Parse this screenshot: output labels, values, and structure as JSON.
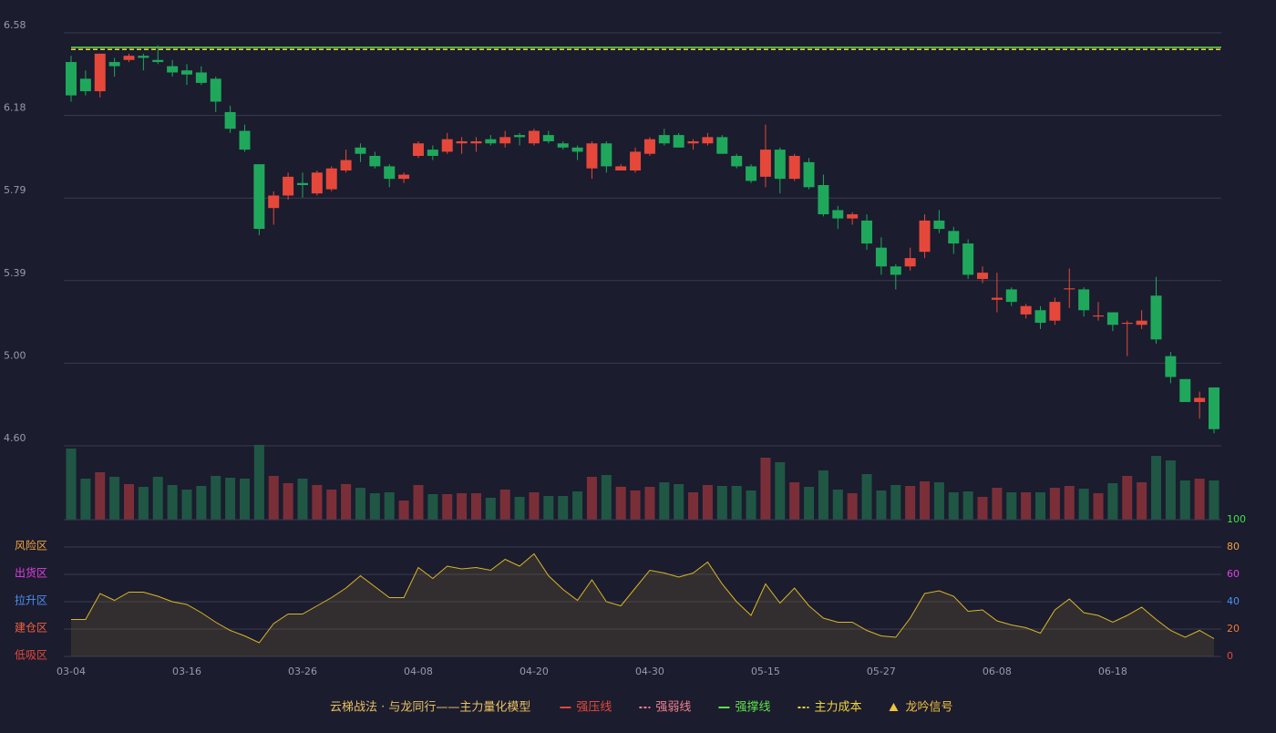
{
  "chart_data": {
    "type": "candlestick",
    "categories": [
      "03-04",
      null,
      null,
      null,
      null,
      null,
      null,
      null,
      "03-16",
      null,
      null,
      null,
      null,
      null,
      null,
      null,
      "03-26",
      null,
      null,
      null,
      null,
      null,
      null,
      null,
      "04-08",
      null,
      null,
      null,
      null,
      null,
      null,
      null,
      "04-20",
      null,
      null,
      null,
      null,
      null,
      null,
      null,
      "04-30",
      null,
      null,
      null,
      null,
      null,
      null,
      null,
      "05-15",
      null,
      null,
      null,
      null,
      null,
      null,
      null,
      "05-27",
      null,
      null,
      null,
      null,
      null,
      null,
      null,
      "06-08",
      null,
      null,
      null,
      null,
      null,
      null,
      null,
      "06-18",
      null,
      null,
      null,
      null,
      null,
      null,
      null
    ],
    "open": [
      6.44,
      6.36,
      6.3,
      6.44,
      6.45,
      6.47,
      6.45,
      6.42,
      6.4,
      6.39,
      6.36,
      6.2,
      6.11,
      5.95,
      5.74,
      5.8,
      5.86,
      5.81,
      5.83,
      5.92,
      6.03,
      5.99,
      5.94,
      5.88,
      5.99,
      6.02,
      6.01,
      6.05,
      6.05,
      6.07,
      6.05,
      6.09,
      6.05,
      6.09,
      6.05,
      6.03,
      5.93,
      6.05,
      5.92,
      5.92,
      6.0,
      6.09,
      6.09,
      6.05,
      6.05,
      6.08,
      5.99,
      5.94,
      5.89,
      6.02,
      5.88,
      5.96,
      5.85,
      5.73,
      5.69,
      5.68,
      5.55,
      5.46,
      5.46,
      5.53,
      5.68,
      5.63,
      5.57,
      5.4,
      5.3,
      5.35,
      5.23,
      5.25,
      5.2,
      5.35,
      5.35,
      5.22,
      5.24,
      5.185,
      5.18,
      5.32,
      5.03,
      4.92,
      4.81,
      4.88
    ],
    "high": [
      6.47,
      6.4,
      6.48,
      6.46,
      6.48,
      6.48,
      6.52,
      6.45,
      6.43,
      6.42,
      6.37,
      6.23,
      6.14,
      5.95,
      5.82,
      5.91,
      5.91,
      5.92,
      5.94,
      6.02,
      6.05,
      6.01,
      5.95,
      5.91,
      6.06,
      6.04,
      6.1,
      6.08,
      6.08,
      6.09,
      6.11,
      6.1,
      6.12,
      6.11,
      6.06,
      6.04,
      6.06,
      6.06,
      5.95,
      6.03,
      6.08,
      6.12,
      6.1,
      6.07,
      6.1,
      6.09,
      6.0,
      5.95,
      6.14,
      6.03,
      6.0,
      5.98,
      5.9,
      5.75,
      5.72,
      5.71,
      5.6,
      5.47,
      5.55,
      5.71,
      5.73,
      5.65,
      5.59,
      5.46,
      5.43,
      5.36,
      5.28,
      5.27,
      5.31,
      5.45,
      5.36,
      5.29,
      5.24,
      5.2,
      5.25,
      5.41,
      5.05,
      4.92,
      4.86,
      4.88
    ],
    "low": [
      6.25,
      6.28,
      6.27,
      6.37,
      6.44,
      6.4,
      6.43,
      6.37,
      6.33,
      6.33,
      6.2,
      6.1,
      6.01,
      5.61,
      5.66,
      5.78,
      5.79,
      5.8,
      5.82,
      5.91,
      5.96,
      5.93,
      5.84,
      5.86,
      5.98,
      5.97,
      6.0,
      6.0,
      6.01,
      6.04,
      6.03,
      6.04,
      6.04,
      6.05,
      6.02,
      5.97,
      5.88,
      5.91,
      5.92,
      5.91,
      5.99,
      6.04,
      6.03,
      6.02,
      6.04,
      6.0,
      5.93,
      5.86,
      5.84,
      5.81,
      5.87,
      5.83,
      5.7,
      5.64,
      5.66,
      5.54,
      5.42,
      5.35,
      5.44,
      5.5,
      5.62,
      5.52,
      5.4,
      5.38,
      5.24,
      5.27,
      5.21,
      5.16,
      5.18,
      5.26,
      5.22,
      5.2,
      5.15,
      5.03,
      5.16,
      5.09,
      4.9,
      4.81,
      4.73,
      4.66
    ],
    "close": [
      6.28,
      6.3,
      6.48,
      6.42,
      6.47,
      6.46,
      6.44,
      6.39,
      6.38,
      6.34,
      6.25,
      6.12,
      6.02,
      5.64,
      5.8,
      5.89,
      5.85,
      5.91,
      5.93,
      5.97,
      6.0,
      5.94,
      5.88,
      5.9,
      6.05,
      5.99,
      6.07,
      6.06,
      6.06,
      6.05,
      6.08,
      6.08,
      6.11,
      6.06,
      6.03,
      6.01,
      6.05,
      5.94,
      5.94,
      6.01,
      6.07,
      6.05,
      6.03,
      6.06,
      6.08,
      6.0,
      5.94,
      5.87,
      6.02,
      5.88,
      5.99,
      5.84,
      5.71,
      5.69,
      5.71,
      5.57,
      5.46,
      5.42,
      5.5,
      5.68,
      5.64,
      5.57,
      5.42,
      5.43,
      5.31,
      5.29,
      5.27,
      5.19,
      5.29,
      5.355,
      5.25,
      5.225,
      5.18,
      5.19,
      5.2,
      5.11,
      4.93,
      4.81,
      4.83,
      4.68
    ],
    "up_color": "#e5483a",
    "down_color": "#1fa85c",
    "ylim": [
      4.6,
      6.58
    ],
    "yticks": [
      {
        "value": 6.58,
        "label": "6.58"
      },
      {
        "value": 6.184,
        "label": "6.18"
      },
      {
        "value": 5.788,
        "label": "5.79"
      },
      {
        "value": 5.392,
        "label": "5.39"
      },
      {
        "value": 4.996,
        "label": "5.00"
      },
      {
        "value": 4.6,
        "label": "4.60"
      }
    ],
    "grid": true,
    "levels": [
      {
        "name": "强撑线",
        "color": "#5ee04a",
        "value": 6.51
      },
      {
        "name": "主力成本",
        "color": "#f0d43a",
        "value": 6.5
      }
    ],
    "volume": {
      "values": [
        78,
        45,
        52,
        47,
        39,
        36,
        47,
        38,
        33,
        37,
        48,
        46,
        45,
        82,
        48,
        40,
        45,
        38,
        33,
        39,
        35,
        29,
        30,
        21,
        38,
        28,
        28,
        29,
        29,
        24,
        33,
        25,
        30,
        26,
        26,
        31,
        47,
        49,
        36,
        32,
        36,
        41,
        39,
        30,
        38,
        37,
        37,
        32,
        68,
        63,
        41,
        36,
        54,
        33,
        29,
        50,
        32,
        38,
        37,
        42,
        41,
        30,
        31,
        25,
        35,
        30,
        30,
        30,
        35,
        37,
        34,
        29,
        40,
        48,
        41,
        70,
        65,
        43,
        45,
        43
      ],
      "ylim": [
        0,
        82
      ],
      "up_color": "#7a2f38",
      "down_color": "#1f5744"
    },
    "oscillator": {
      "type": "line",
      "values": [
        27,
        27,
        46,
        41,
        47,
        47,
        44,
        40,
        38,
        32,
        25,
        19,
        15,
        10,
        24,
        31,
        31,
        37,
        43,
        50,
        59,
        51,
        43,
        43,
        65,
        57,
        66,
        64,
        65,
        63,
        71,
        66,
        75,
        59,
        49,
        41,
        56,
        40,
        37,
        50,
        63,
        61,
        58,
        61,
        69,
        53,
        40,
        30,
        53,
        39,
        50,
        37,
        28,
        25,
        25,
        19,
        15,
        14,
        28,
        46,
        48,
        44,
        33,
        34,
        26,
        23,
        21,
        17,
        34,
        42,
        32,
        30,
        25,
        30,
        36,
        27,
        19,
        14,
        19,
        13
      ],
      "color": "#d9b526",
      "ylim": [
        0,
        100
      ],
      "yticks": [
        0,
        20,
        40,
        60,
        80,
        100
      ],
      "ytick_colors": [
        "#e5483a",
        "#f07a3a",
        "#4e8ff0",
        "#e040e0",
        "#f0a040",
        "#3ee04a"
      ],
      "zones": [
        {
          "label": "低吸区",
          "color": "#e5483a"
        },
        {
          "label": "建仓区",
          "color": "#f06040"
        },
        {
          "label": "拉升区",
          "color": "#4e8ff0"
        },
        {
          "label": "出货区",
          "color": "#e040e0"
        },
        {
          "label": "风险区",
          "color": "#f0a040"
        }
      ]
    },
    "legend_title": "云梯战法 · 与龙同行——主力量化模型",
    "legend": [
      {
        "name": "强压线",
        "color": "#e5483a",
        "style": "solid"
      },
      {
        "name": "强弱线",
        "color": "#f08090",
        "style": "dashed"
      },
      {
        "name": "强撑线",
        "color": "#5ee04a",
        "style": "solid"
      },
      {
        "name": "主力成本",
        "color": "#f0d43a",
        "style": "dashed"
      },
      {
        "name": "龙吟信号",
        "color": "#f0c040",
        "style": "triangle"
      }
    ]
  }
}
